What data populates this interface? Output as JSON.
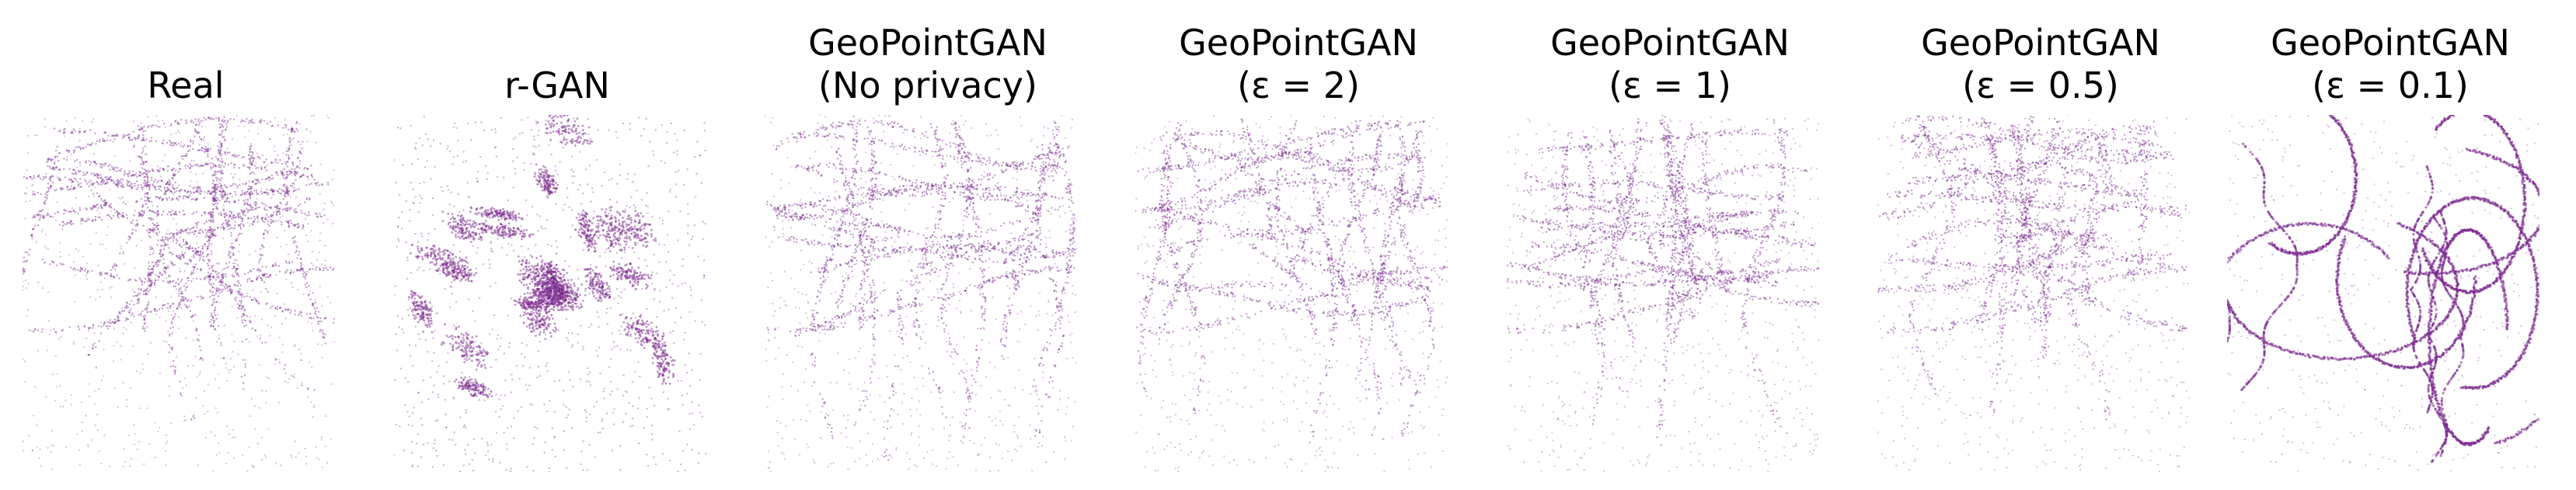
{
  "figure": {
    "point_color": "#7b2a8d",
    "panels": [
      {
        "title_line1": "Real",
        "title_line2": ""
      },
      {
        "title_line1": "r-GAN",
        "title_line2": ""
      },
      {
        "title_line1": "GeoPointGAN",
        "title_line2": "(No privacy)"
      },
      {
        "title_line1": "GeoPointGAN",
        "title_line2": "(ε = 2)"
      },
      {
        "title_line1": "GeoPointGAN",
        "title_line2": "(ε = 1)"
      },
      {
        "title_line1": "GeoPointGAN",
        "title_line2": "(ε = 0.5)"
      },
      {
        "title_line1": "GeoPointGAN",
        "title_line2": "(ε = 0.1)"
      }
    ]
  },
  "chart_data": [
    {
      "type": "scatter",
      "title": "Real",
      "axes": "off",
      "grid": false,
      "color": "#7b2a8d",
      "points": "dense point cloud tracing a road network; heavier density in upper-middle, sparser in lower half"
    },
    {
      "type": "scatter",
      "title": "r-GAN",
      "axes": "off",
      "grid": false,
      "color": "#7b2a8d",
      "points": "scattered dense blobs radiating from the center, sparse background"
    },
    {
      "type": "scatter",
      "title": "GeoPointGAN (No privacy)",
      "axes": "off",
      "grid": false,
      "color": "#7b2a8d",
      "points": "road-network-like point cloud similar to Real"
    },
    {
      "type": "scatter",
      "title": "GeoPointGAN (ε = 2)",
      "axes": "off",
      "grid": false,
      "color": "#7b2a8d",
      "points": "road-network-like point cloud, slightly thicker lines"
    },
    {
      "type": "scatter",
      "title": "GeoPointGAN (ε = 1)",
      "axes": "off",
      "grid": false,
      "color": "#7b2a8d",
      "points": "road-network-like point cloud, similar to Real"
    },
    {
      "type": "scatter",
      "title": "GeoPointGAN (ε = 0.5)",
      "axes": "off",
      "grid": false,
      "color": "#7b2a8d",
      "points": "road-network-like point cloud with some distortion"
    },
    {
      "type": "scatter",
      "title": "GeoPointGAN (ε = 0.1)",
      "axes": "off",
      "grid": false,
      "color": "#7b2a8d",
      "points": "coarse looping curves with sparse points, heavy distortion"
    }
  ]
}
